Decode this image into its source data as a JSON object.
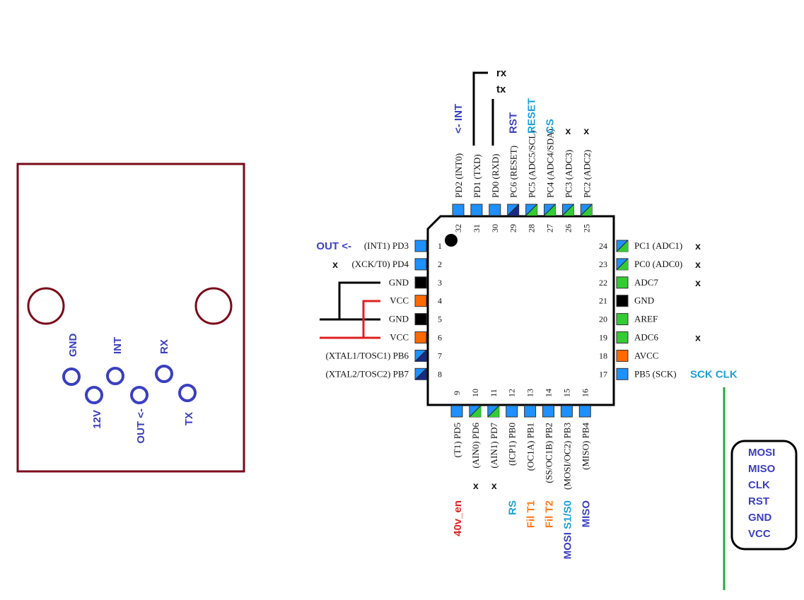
{
  "colors": {
    "blue_pin": "#1e90ff",
    "green_pin": "#33cc33",
    "dark_pin": "#1a2a80",
    "black_pin": "#000000",
    "orange_pin": "#ff6a00",
    "annotation_blue": "#3a3fc0",
    "annotation_cyan": "#1aa0d8",
    "annotation_red": "#e02020",
    "annotation_orange": "#ff7a1a",
    "board_outline": "#7a0a18",
    "wire_red": "#e02020",
    "wire_green": "#22aa44"
  },
  "chip": {
    "left_pins": [
      {
        "num": "1",
        "label": "(INT1) PD3",
        "pin": "blue",
        "ann": "OUT <-",
        "ann_color": "blue"
      },
      {
        "num": "2",
        "label": "(XCK/T0) PD4",
        "pin": "blue",
        "ann": "x",
        "ann_color": "black"
      },
      {
        "num": "3",
        "label": "GND",
        "pin": "black",
        "ann": "",
        "ann_color": "black"
      },
      {
        "num": "4",
        "label": "VCC",
        "pin": "orange",
        "ann": "",
        "ann_color": "black"
      },
      {
        "num": "5",
        "label": "GND",
        "pin": "black",
        "ann": "",
        "ann_color": "black"
      },
      {
        "num": "6",
        "label": "VCC",
        "pin": "orange",
        "ann": "",
        "ann_color": "black"
      },
      {
        "num": "7",
        "label": "(XTAL1/TOSC1) PB6",
        "pin": "split-dark",
        "ann": "",
        "ann_color": "black"
      },
      {
        "num": "8",
        "label": "(XTAL2/TOSC2) PB7",
        "pin": "split-dark",
        "ann": "",
        "ann_color": "black"
      }
    ],
    "right_pins": [
      {
        "num": "24",
        "label": "PC1 (ADC1)",
        "pin": "split-green",
        "ann": "x",
        "ann_color": "black"
      },
      {
        "num": "23",
        "label": "PC0 (ADC0)",
        "pin": "split-green",
        "ann": "x",
        "ann_color": "black"
      },
      {
        "num": "22",
        "label": "ADC7",
        "pin": "green",
        "ann": "x",
        "ann_color": "black"
      },
      {
        "num": "21",
        "label": "GND",
        "pin": "black",
        "ann": "",
        "ann_color": "black"
      },
      {
        "num": "20",
        "label": "AREF",
        "pin": "green",
        "ann": "",
        "ann_color": "black"
      },
      {
        "num": "19",
        "label": "ADC6",
        "pin": "green",
        "ann": "x",
        "ann_color": "black"
      },
      {
        "num": "18",
        "label": "AVCC",
        "pin": "orange",
        "ann": "",
        "ann_color": "black"
      },
      {
        "num": "17",
        "label": "PB5 (SCK)",
        "pin": "blue",
        "ann": "SCK CLK",
        "ann_color": "cyan"
      }
    ],
    "top_pins": [
      {
        "num": "32",
        "label": "PD2 (INT0)",
        "pin": "blue",
        "ann": "<- INT",
        "ann_color": "blue"
      },
      {
        "num": "31",
        "label": "PD1 (TXD)",
        "pin": "blue",
        "ann": "",
        "ann_color": "black"
      },
      {
        "num": "30",
        "label": "PD0 (RXD)",
        "pin": "blue",
        "ann": "",
        "ann_color": "black"
      },
      {
        "num": "29",
        "label": "PC6 (RESET)",
        "pin": "split-dark",
        "ann": "RST",
        "ann_color": "blue"
      },
      {
        "num": "28",
        "label": "PC5 (ADC5/SCL)",
        "pin": "split-green",
        "ann": "RESET",
        "ann_color": "cyan"
      },
      {
        "num": "27",
        "label": "PC4 (ADC4/SDA)",
        "pin": "split-green",
        "ann": "CS",
        "ann_color": "cyan"
      },
      {
        "num": "26",
        "label": "PC3 (ADC3)",
        "pin": "split-green",
        "ann": "x",
        "ann_color": "black"
      },
      {
        "num": "25",
        "label": "PC2 (ADC2)",
        "pin": "split-green",
        "ann": "x",
        "ann_color": "black"
      }
    ],
    "bottom_pins": [
      {
        "num": "9",
        "label": "(T1) PD5",
        "pin": "blue",
        "ann": "40v_en",
        "ann_color": "red"
      },
      {
        "num": "10",
        "label": "(AIN0) PD6",
        "pin": "split-green",
        "ann": "x",
        "ann_color": "black"
      },
      {
        "num": "11",
        "label": "(AIN1) PD7",
        "pin": "split-green",
        "ann": "x",
        "ann_color": "black"
      },
      {
        "num": "12",
        "label": "(ICP1) PB0",
        "pin": "blue",
        "ann": "RS",
        "ann_color": "cyan"
      },
      {
        "num": "13",
        "label": "(OC1A) PB1",
        "pin": "blue",
        "ann": "Fil T1",
        "ann_color": "orange"
      },
      {
        "num": "14",
        "label": "(SS/OC1B) PB2",
        "pin": "blue",
        "ann": "Fil T2",
        "ann_color": "orange"
      },
      {
        "num": "15",
        "label": "(MOSI/OC2) PB3",
        "pin": "blue",
        "ann": "MOSI S1/S0",
        "ann_color": "split"
      },
      {
        "num": "16",
        "label": "(MISO) PB4",
        "pin": "blue",
        "ann": "MISO",
        "ann_color": "blue"
      }
    ]
  },
  "uart": {
    "rx": "rx",
    "tx": "tx"
  },
  "connector": {
    "labels_top": [
      "GND",
      "INT",
      "RX"
    ],
    "labels_bottom": [
      "12V",
      "OUT <-",
      "TX"
    ]
  },
  "isp_header": {
    "labels": [
      "MOSI",
      "MISO",
      "CLK",
      "RST",
      "GND",
      "VCC"
    ]
  }
}
